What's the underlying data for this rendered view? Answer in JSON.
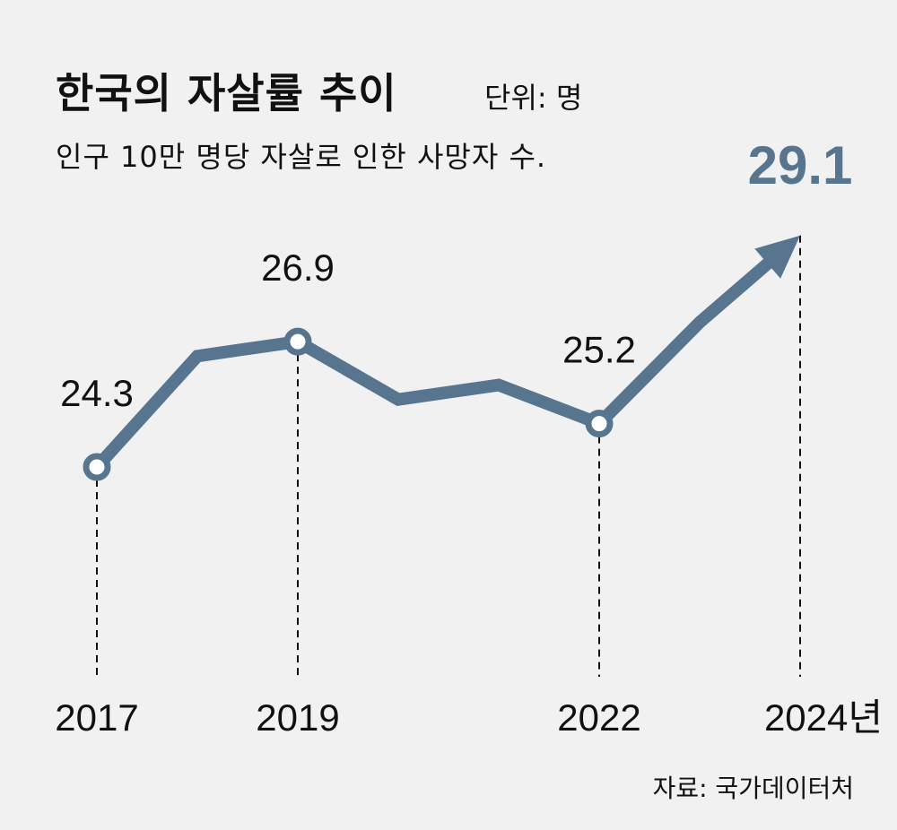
{
  "title": "한국의 자살률 추이",
  "unit": "단위: 명",
  "subtitle": "인구 10만 명당 자살로 인한 사망자 수.",
  "source": "자료: 국가데이터처",
  "colors": {
    "line": "#587590",
    "background": "#f1f1f1",
    "text": "#111111"
  },
  "chart_data": {
    "type": "line",
    "title": "한국의 자살률 추이",
    "ylabel": "인구 10만 명당 자살로 인한 사망자 수",
    "x": [
      2017,
      2018,
      2019,
      2020,
      2021,
      2022,
      2023,
      2024
    ],
    "values": [
      24.3,
      26.6,
      26.9,
      25.7,
      26.0,
      25.2,
      27.3,
      29.1
    ],
    "labeled_points": [
      {
        "year": 2017,
        "label": "24.3",
        "tick": "2017"
      },
      {
        "year": 2019,
        "label": "26.9",
        "tick": "2019"
      },
      {
        "year": 2022,
        "label": "25.2",
        "tick": "2022"
      },
      {
        "year": 2024,
        "label": "29.1",
        "tick": "2024년",
        "highlight": true
      }
    ],
    "grid": false
  }
}
